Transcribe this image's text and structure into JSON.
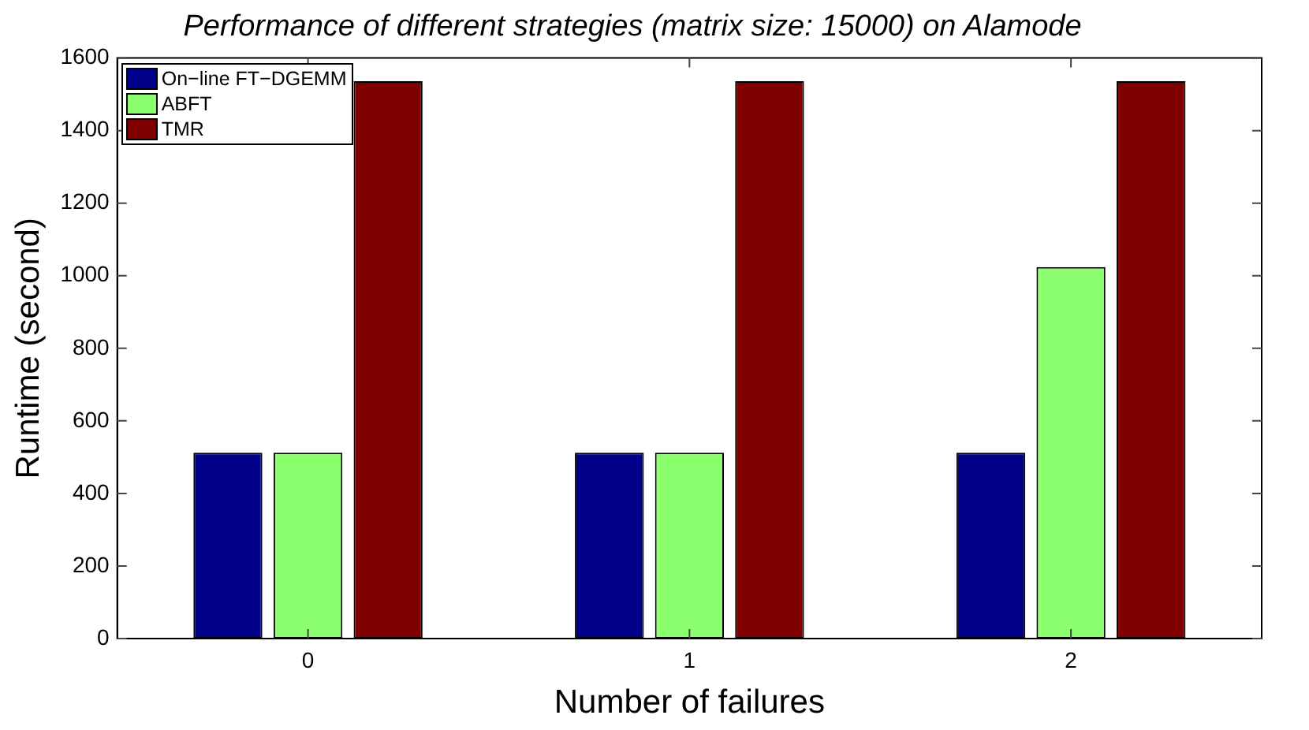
{
  "chart_data": {
    "type": "bar",
    "title": "Performance of different strategies (matrix size: 15000) on Alamode",
    "xlabel": "Number of failures",
    "ylabel": "Runtime (second)",
    "categories": [
      "0",
      "1",
      "2"
    ],
    "series": [
      {
        "name": "On−line FT−DGEMM",
        "color": "#00008b",
        "values": [
          512,
          512,
          512
        ]
      },
      {
        "name": "ABFT",
        "color": "#8cff6e",
        "values": [
          512,
          512,
          1024
        ]
      },
      {
        "name": "TMR",
        "color": "#800000",
        "values": [
          1536,
          1536,
          1536
        ]
      }
    ],
    "ylim": [
      0,
      1600
    ],
    "yticks": [
      0,
      200,
      400,
      600,
      800,
      1000,
      1200,
      1400,
      1600
    ],
    "grid": false,
    "legend": "top left"
  }
}
